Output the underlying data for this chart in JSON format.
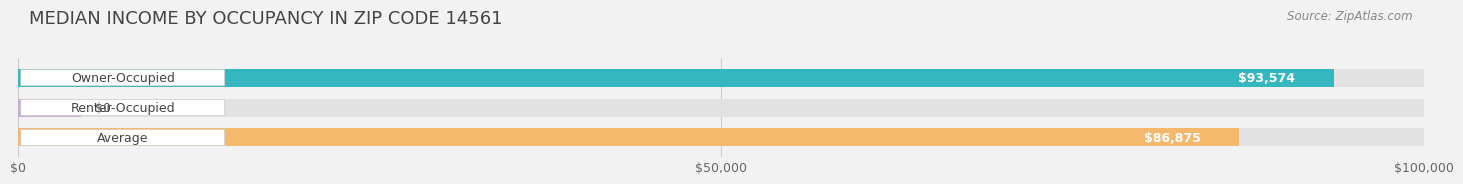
{
  "title": "MEDIAN INCOME BY OCCUPANCY IN ZIP CODE 14561",
  "source": "Source: ZipAtlas.com",
  "categories": [
    "Owner-Occupied",
    "Renter-Occupied",
    "Average"
  ],
  "values": [
    93574,
    0,
    86875
  ],
  "bar_colors": [
    "#36b7bf",
    "#c5aed4",
    "#f5b96e"
  ],
  "bar_labels": [
    "$93,574",
    "$0",
    "$86,875"
  ],
  "xlim": [
    0,
    100000
  ],
  "xticks": [
    0,
    50000,
    100000
  ],
  "xtick_labels": [
    "$0",
    "$50,000",
    "$100,000"
  ],
  "bg_color": "#f2f2f2",
  "bar_bg_color": "#e0e0e0",
  "title_fontsize": 13,
  "label_fontsize": 9,
  "source_fontsize": 8.5,
  "bar_height": 0.6,
  "fig_width": 14.06,
  "fig_height": 1.97
}
